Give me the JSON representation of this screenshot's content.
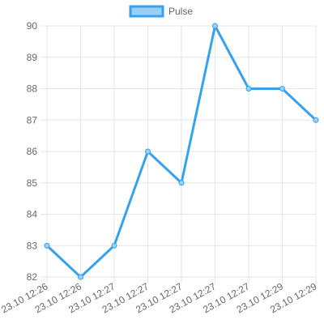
{
  "chart_data": {
    "type": "line",
    "categories": [
      "23.10 12:26",
      "23.10 12:26",
      "23.10 12:27",
      "23.10 12:27",
      "23.10 12:27",
      "23.10 12:27",
      "23.10 12:27",
      "23.10 12:29",
      "23.10 12:29"
    ],
    "series": [
      {
        "name": "Pulse",
        "values": [
          83,
          82,
          83,
          86,
          85,
          90,
          88,
          88,
          87
        ]
      }
    ],
    "ylim": [
      82,
      90
    ],
    "yticks": [
      82,
      83,
      84,
      85,
      86,
      87,
      88,
      89,
      90
    ],
    "grid": true,
    "legend": "top-center",
    "colors": {
      "line": "#36a2eb",
      "fill": "#9ad0f5",
      "grid": "#e5e5e5",
      "text": "#666666"
    }
  }
}
